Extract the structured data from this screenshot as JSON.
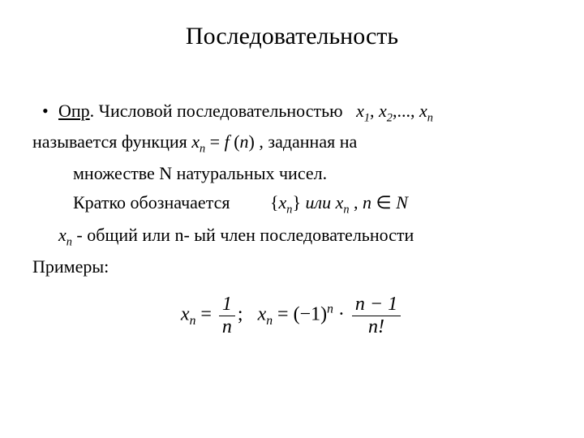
{
  "title": "Последовательность",
  "bullet_prefix_underlined": "Опр",
  "bullet_rest": ". Числовой последовательностью",
  "seq_inline_html": "<span class='math'>x</span><span class='sub'>1</span>, <span class='math'>x</span><span class='sub'>2</span>,..., <span class='math'>x</span><span class='sub'>n</span>",
  "line2_a": "называется функция  ",
  "line2_b_html": "<span class='math'>x</span><span class='sub'>n</span> = <span class='math'>f</span> (<span class='math'>n</span>)",
  "line2_c": "   , заданная на",
  "line2_d": "множестве N натуральных чисел.",
  "line3_a": "Кратко обозначается",
  "line3_b_html": "{<span class='math'>x</span><span class='sub'>n</span>}  <span style='font-style:italic'>или</span>  <span class='math'>x</span><span class='sub'>n</span>  ,  <span class='math'>n</span> ∈ <span class='math'>N</span>",
  "line4_a_html": "<span class='math'>x</span><span class='sub'>n</span>",
  "line4_b": "  - общий или n- ый член последовательности",
  "line5": "Примеры:",
  "example_html": "<span class='math'>x</span><span class='sub'>n</span> = <span class='frac'><span class='num'>1</span><span class='den math'>n</span></span>;&nbsp;&nbsp; <span class='math'>x</span><span class='sub'>n</span> = (−1)<span class='sup'>n</span> · <span class='frac'><span class='num'><span class='math'>n</span> − 1</span><span class='den'><span class='math'>n</span>!</span></span>",
  "colors": {
    "background": "#ffffff",
    "text": "#000000"
  },
  "font": {
    "family": "Times New Roman",
    "title_size_pt": 30,
    "body_size_pt": 22
  }
}
